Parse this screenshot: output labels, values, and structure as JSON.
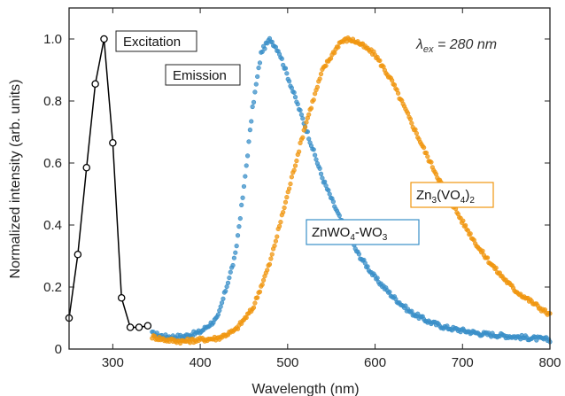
{
  "chart_data": {
    "type": "line",
    "xlabel": "Wavelength (nm)",
    "ylabel": "Normalized intensity (arb. units)",
    "xlim": [
      250,
      800
    ],
    "ylim": [
      0,
      1.1
    ],
    "xticks": [
      300,
      400,
      500,
      600,
      700,
      800
    ],
    "yticks": [
      0,
      0.2,
      0.4,
      0.6,
      0.8,
      1.0
    ],
    "ytick_labels": [
      "0",
      "0.2",
      "0.4",
      "0.6",
      "0.8",
      "1.0"
    ],
    "grid": false,
    "legend": "none",
    "annotations": {
      "excitation": "Excitation",
      "emission": "Emission",
      "lambda_main": "λ",
      "lambda_sub": "ex",
      "lambda_rest": " = 280 nm",
      "zno_main": "ZnWO",
      "zno_sub1": "4",
      "zno_mid": "-WO",
      "zno_sub2": "3",
      "zv_a": "Zn",
      "zv_sub1": "3",
      "zv_b": "(VO",
      "zv_sub2": "4",
      "zv_c": ")",
      "zv_sub3": "2"
    },
    "series": [
      {
        "color": "#000000",
        "marker": "open-circle",
        "x": [
          250,
          260,
          270,
          280,
          290,
          300,
          310,
          320,
          330,
          340
        ],
        "y": [
          0.1,
          0.305,
          0.585,
          0.855,
          1.0,
          0.665,
          0.165,
          0.07,
          0.07,
          0.075
        ]
      },
      {
        "color": "#3a8fc8",
        "marker": "circle",
        "x": [
          345,
          360,
          380,
          400,
          420,
          440,
          450,
          460,
          470,
          480,
          490,
          500,
          520,
          540,
          560,
          580,
          600,
          620,
          640,
          660,
          680,
          700,
          720,
          740,
          760,
          780,
          800
        ],
        "y": [
          0.05,
          0.04,
          0.04,
          0.055,
          0.1,
          0.3,
          0.52,
          0.78,
          0.96,
          1.0,
          0.96,
          0.88,
          0.72,
          0.55,
          0.42,
          0.31,
          0.23,
          0.17,
          0.12,
          0.09,
          0.07,
          0.06,
          0.05,
          0.045,
          0.04,
          0.035,
          0.03
        ]
      },
      {
        "color": "#f0960f",
        "marker": "circle",
        "x": [
          345,
          360,
          380,
          400,
          420,
          440,
          460,
          480,
          500,
          520,
          540,
          560,
          570,
          580,
          600,
          620,
          640,
          660,
          680,
          700,
          720,
          740,
          760,
          780,
          800
        ],
        "y": [
          0.04,
          0.03,
          0.025,
          0.03,
          0.035,
          0.06,
          0.13,
          0.28,
          0.5,
          0.72,
          0.9,
          0.99,
          1.0,
          0.99,
          0.95,
          0.86,
          0.74,
          0.62,
          0.51,
          0.41,
          0.32,
          0.25,
          0.19,
          0.15,
          0.11
        ]
      }
    ]
  }
}
